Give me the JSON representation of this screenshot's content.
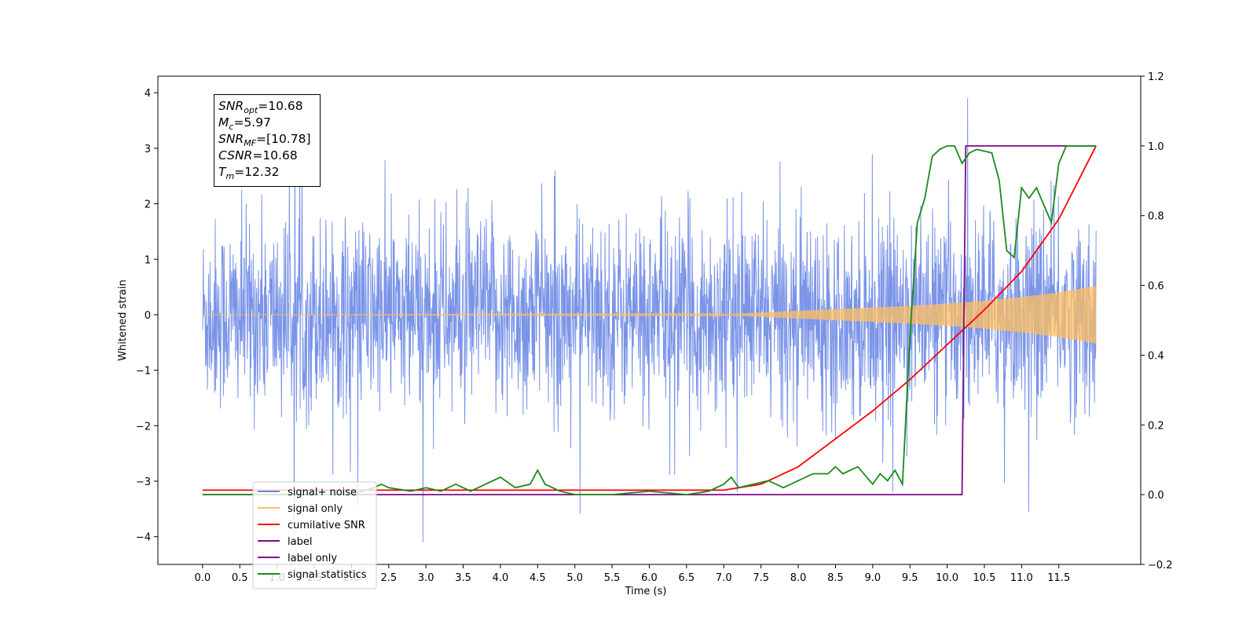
{
  "chart_data": {
    "type": "line",
    "title": "",
    "xlabel": "Time (s)",
    "ylabel": "Whitened strain",
    "xlim": [
      -0.6,
      12.6
    ],
    "ylim": [
      -4.5,
      4.3
    ],
    "y2lim": [
      -0.2,
      1.2
    ],
    "grid": false,
    "x_ticks": [
      0.0,
      0.5,
      1.0,
      1.5,
      2.0,
      2.5,
      3.0,
      3.5,
      4.0,
      4.5,
      5.0,
      5.5,
      6.0,
      6.5,
      7.0,
      7.5,
      8.0,
      8.5,
      9.0,
      9.5,
      10.0,
      10.5,
      11.0,
      11.5
    ],
    "x_tick_labels": [
      "0.0",
      "0.5",
      "1.0",
      "1.5",
      "2.0",
      "2.5",
      "3.0",
      "3.5",
      "4.0",
      "4.5",
      "5.0",
      "5.5",
      "6.0",
      "6.5",
      "7.0",
      "7.5",
      "8.0",
      "8.5",
      "9.0",
      "9.5",
      "10.0",
      "10.5",
      "11.0",
      "11.5"
    ],
    "y_ticks": [
      -4,
      -3,
      -2,
      -1,
      0,
      1,
      2,
      3,
      4
    ],
    "y_tick_labels": [
      "−4",
      "−3",
      "−2",
      "−1",
      "0",
      "1",
      "2",
      "3",
      "4"
    ],
    "y2_ticks": [
      -0.2,
      0.0,
      0.2,
      0.4,
      0.6,
      0.8,
      1.0,
      1.2
    ],
    "y2_tick_labels": [
      "−0.2",
      "0.0",
      "0.2",
      "0.4",
      "0.6",
      "0.8",
      "1.0",
      "1.2"
    ],
    "legend_position": "lower-left",
    "series": [
      {
        "name": "signal+ noise",
        "axis": "left",
        "color": "#6b88e6",
        "description_range": {
          "x": [
            0.0,
            12.0
          ],
          "y_min": -4.1,
          "y_max": 3.9
        },
        "envelope": {
          "x": [
            0.0,
            12.0
          ],
          "amplitude": 1.2,
          "peak_min": -4.1,
          "peak_max": 3.9
        }
      },
      {
        "name": "signal only",
        "axis": "left",
        "color": "#ffbf60",
        "envelope": {
          "x": [
            0.0,
            7.0,
            7.5,
            8.0,
            8.5,
            9.0,
            9.5,
            10.0,
            10.5,
            11.0,
            11.5,
            12.0
          ],
          "amplitude": [
            0.0,
            0.01,
            0.04,
            0.07,
            0.1,
            0.13,
            0.16,
            0.2,
            0.25,
            0.32,
            0.4,
            0.52
          ]
        }
      },
      {
        "name": "cumilative SNR",
        "axis": "right",
        "color": "#ff0000",
        "x": [
          0.0,
          7.0,
          7.5,
          8.0,
          8.5,
          9.0,
          9.5,
          10.0,
          10.5,
          11.0,
          11.5,
          12.0
        ],
        "values": [
          0.013,
          0.013,
          0.03,
          0.08,
          0.16,
          0.24,
          0.33,
          0.43,
          0.53,
          0.64,
          0.79,
          1.0
        ]
      },
      {
        "name": "label",
        "axis": "right",
        "color": "#7b0f83",
        "x": [
          0.0,
          10.2,
          10.25,
          12.0
        ],
        "values": [
          0.0,
          0.0,
          1.0,
          1.0
        ]
      },
      {
        "name": "label only",
        "axis": "right",
        "color": "#7b0f83",
        "x": [],
        "values": []
      },
      {
        "name": "signal statistics",
        "axis": "right",
        "color": "#1a8a1a",
        "x": [
          0.0,
          0.5,
          1.0,
          1.5,
          2.0,
          2.3,
          2.4,
          2.5,
          2.8,
          3.0,
          3.2,
          3.4,
          3.6,
          3.8,
          4.0,
          4.2,
          4.4,
          4.5,
          4.6,
          4.8,
          5.0,
          5.5,
          6.0,
          6.5,
          6.8,
          7.0,
          7.1,
          7.2,
          7.4,
          7.6,
          7.8,
          8.0,
          8.2,
          8.4,
          8.5,
          8.6,
          8.8,
          9.0,
          9.1,
          9.2,
          9.3,
          9.4,
          9.5,
          9.6,
          9.7,
          9.8,
          9.9,
          10.0,
          10.1,
          10.2,
          10.3,
          10.4,
          10.6,
          10.7,
          10.8,
          10.9,
          11.0,
          11.1,
          11.2,
          11.3,
          11.4,
          11.5,
          11.6,
          11.7,
          12.0
        ],
        "values": [
          0.0,
          0.0,
          0.0,
          0.0,
          0.0,
          0.02,
          0.03,
          0.02,
          0.01,
          0.02,
          0.01,
          0.03,
          0.01,
          0.03,
          0.05,
          0.02,
          0.03,
          0.07,
          0.03,
          0.01,
          0.0,
          0.0,
          0.01,
          0.0,
          0.01,
          0.03,
          0.05,
          0.02,
          0.03,
          0.04,
          0.02,
          0.04,
          0.06,
          0.06,
          0.08,
          0.06,
          0.08,
          0.03,
          0.06,
          0.04,
          0.07,
          0.03,
          0.45,
          0.78,
          0.85,
          0.97,
          0.99,
          1.0,
          1.0,
          0.95,
          0.98,
          0.99,
          0.98,
          0.9,
          0.7,
          0.68,
          0.88,
          0.85,
          0.88,
          0.83,
          0.78,
          0.95,
          1.0,
          1.0,
          1.0
        ]
      }
    ],
    "annotations": {
      "snr_opt": "=10.68",
      "mc": "=5.97",
      "snr_mf": "=[10.78]",
      "csnr": "=10.68",
      "tm": "=12.32"
    }
  }
}
